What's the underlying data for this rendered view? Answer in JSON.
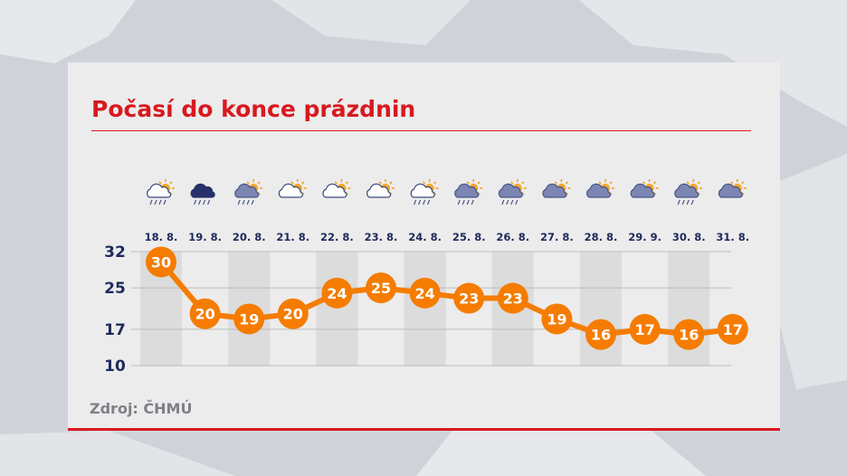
{
  "title": "Počasí do konce prázdnin",
  "source": "Zdroj: ČHMÚ",
  "colors": {
    "accent": "#d8191f",
    "line": "#f57c00",
    "axis_text": "#1f2a5c",
    "source_text": "#7e8087",
    "card_bg": "#ececec",
    "stripe": "#dcdcdc"
  },
  "chart_data": {
    "type": "line",
    "title": "Počasí do konce prázdnin",
    "categories": [
      "18. 8.",
      "19. 8.",
      "20. 8.",
      "21. 8.",
      "22. 8.",
      "23. 8.",
      "24. 8.",
      "25. 8.",
      "26. 8.",
      "27. 8.",
      "28. 8.",
      "29. 9.",
      "30. 8.",
      "31. 8."
    ],
    "values": [
      30,
      20,
      19,
      20,
      24,
      25,
      24,
      23,
      23,
      19,
      16,
      17,
      16,
      17
    ],
    "yticks": [
      32,
      25,
      17,
      10
    ],
    "ylim": [
      10,
      32
    ],
    "grid": true,
    "weather_icons": [
      "partly-cloudy-rain-wind-icon",
      "dark-cloud-rain-icon",
      "partly-cloudy-rain-icon",
      "partly-cloudy-icon",
      "partly-cloudy-icon",
      "partly-cloudy-icon",
      "partly-cloudy-light-rain-icon",
      "partly-cloudy-rain-icon",
      "partly-cloudy-rain-icon",
      "partly-cloudy-dark-icon",
      "partly-cloudy-dark-icon",
      "partly-cloudy-dark-icon",
      "partly-cloudy-rain-icon",
      "partly-cloudy-dark-icon"
    ]
  }
}
